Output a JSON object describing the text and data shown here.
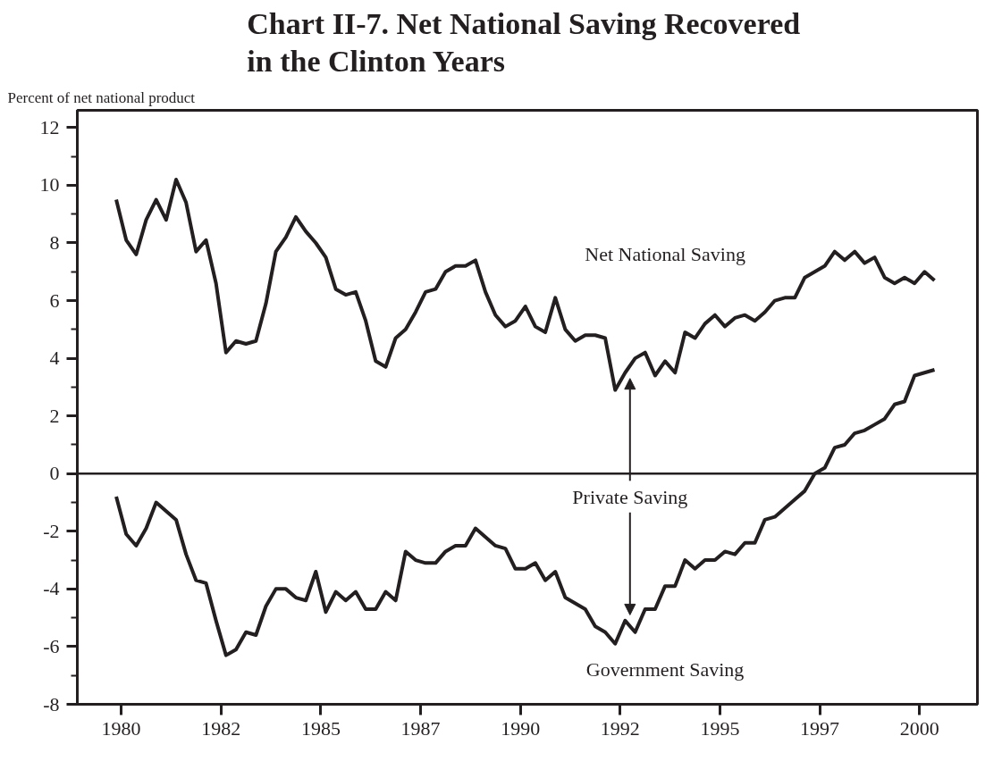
{
  "chart_data": {
    "type": "line",
    "title": "Chart II-7.  Net National Saving Recovered\nin the Clinton Years",
    "ylabel": "Percent of net national product",
    "x": [
      1979.875,
      1980.125,
      1980.375,
      1980.625,
      1980.875,
      1981.125,
      1981.375,
      1981.625,
      1981.875,
      1982.125,
      1982.375,
      1982.625,
      1982.875,
      1983.125,
      1983.375,
      1983.625,
      1983.875,
      1984.125,
      1984.375,
      1984.625,
      1984.875,
      1985.125,
      1985.375,
      1985.625,
      1985.875,
      1986.125,
      1986.375,
      1986.625,
      1986.875,
      1987.125,
      1987.375,
      1987.625,
      1987.875,
      1988.125,
      1988.375,
      1988.625,
      1988.875,
      1989.125,
      1989.375,
      1989.625,
      1989.875,
      1990.125,
      1990.375,
      1990.625,
      1990.875,
      1991.125,
      1991.375,
      1991.625,
      1991.875,
      1992.125,
      1992.375,
      1992.625,
      1992.875,
      1993.125,
      1993.375,
      1993.625,
      1993.875,
      1994.125,
      1994.375,
      1994.625,
      1994.875,
      1995.125,
      1995.375,
      1995.625,
      1995.875,
      1996.125,
      1996.375,
      1996.625,
      1996.875,
      1997.125,
      1997.375,
      1997.625,
      1997.875,
      1998.125,
      1998.375,
      1998.625,
      1998.875,
      1999.125,
      1999.375,
      1999.625,
      1999.875,
      2000.125,
      2000.375
    ],
    "series": [
      {
        "name": "Net National Saving",
        "color": "#231f20",
        "values": [
          9.5,
          8.1,
          7.6,
          8.8,
          9.5,
          8.8,
          10.2,
          9.4,
          7.7,
          8.1,
          6.6,
          4.2,
          4.6,
          4.5,
          4.6,
          5.9,
          7.7,
          8.2,
          8.9,
          8.4,
          8.0,
          7.5,
          6.4,
          6.2,
          6.3,
          5.3,
          3.9,
          3.7,
          4.7,
          5.0,
          5.6,
          6.3,
          6.4,
          7.0,
          7.2,
          7.2,
          7.4,
          6.3,
          5.5,
          5.1,
          5.3,
          5.8,
          5.1,
          4.9,
          6.1,
          5.0,
          4.6,
          4.8,
          4.8,
          4.7,
          2.9,
          3.5,
          4.0,
          4.2,
          3.4,
          3.9,
          3.5,
          4.9,
          4.7,
          5.2,
          5.5,
          5.1,
          5.4,
          5.5,
          5.3,
          5.6,
          6.0,
          6.1,
          6.1,
          6.8,
          7.0,
          7.2,
          7.7,
          7.4,
          7.7,
          7.3,
          7.5,
          6.8,
          6.6,
          6.8,
          6.6,
          7.0,
          6.7
        ]
      },
      {
        "name": "Government Saving",
        "color": "#231f20",
        "values": [
          -0.8,
          -2.1,
          -2.5,
          -1.9,
          -1.0,
          -1.3,
          -1.6,
          -2.8,
          -3.7,
          -3.8,
          -5.1,
          -6.3,
          -6.1,
          -5.5,
          -5.6,
          -4.6,
          -4.0,
          -4.0,
          -4.3,
          -4.4,
          -3.4,
          -4.8,
          -4.1,
          -4.4,
          -4.1,
          -4.7,
          -4.7,
          -4.1,
          -4.4,
          -2.7,
          -3.0,
          -3.1,
          -3.1,
          -2.7,
          -2.5,
          -2.5,
          -1.9,
          -2.2,
          -2.5,
          -2.6,
          -3.3,
          -3.3,
          -3.1,
          -3.7,
          -3.4,
          -4.3,
          -4.5,
          -4.7,
          -5.3,
          -5.5,
          -5.9,
          -5.1,
          -5.5,
          -4.7,
          -4.7,
          -3.9,
          -3.9,
          -3.0,
          -3.3,
          -3.0,
          -3.0,
          -2.7,
          -2.8,
          -2.4,
          -2.4,
          -1.6,
          -1.5,
          -1.2,
          -0.9,
          -0.6,
          0.0,
          0.2,
          0.9,
          1.0,
          1.4,
          1.5,
          1.7,
          1.9,
          2.4,
          2.5,
          3.4,
          3.5,
          3.6
        ]
      }
    ],
    "annotations": [
      "Private Saving"
    ],
    "ref_lines": [
      {
        "axis": "y",
        "value": 0,
        "color": "#231f20"
      }
    ],
    "xlim": [
      1978.9,
      2001.45
    ],
    "ylim": [
      -8,
      12.6
    ],
    "xticks": [
      1980,
      {
        "value": 1982.5,
        "label": "1982"
      },
      1985,
      {
        "value": 1987.5,
        "label": "1987"
      },
      1990,
      {
        "value": 1992.5,
        "label": "1992"
      },
      1995,
      {
        "value": 1997.5,
        "label": "1997"
      },
      2000
    ],
    "yticks": [
      -8,
      {
        "value": -7,
        "label": null
      },
      -6,
      {
        "value": -5,
        "label": null
      },
      -4,
      {
        "value": -3,
        "label": null
      },
      -2,
      {
        "value": -1,
        "label": null
      },
      0,
      {
        "value": 1,
        "label": null
      },
      2,
      {
        "value": 3,
        "label": null
      },
      4,
      {
        "value": 5,
        "label": null
      },
      6,
      {
        "value": 7,
        "label": null
      },
      8,
      {
        "value": 9,
        "label": null
      },
      10,
      {
        "value": 11,
        "label": null
      },
      12
    ],
    "grid": false,
    "marker": "none",
    "line_style": "solid"
  }
}
